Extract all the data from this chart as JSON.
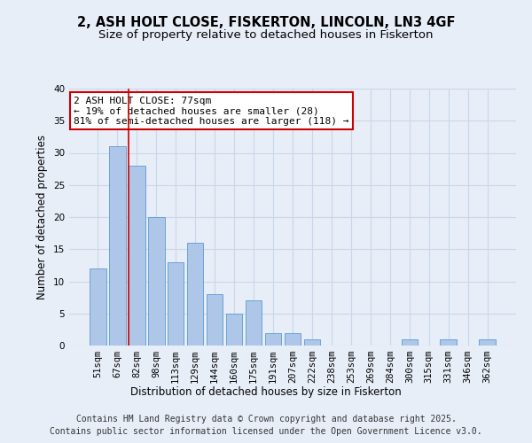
{
  "title1": "2, ASH HOLT CLOSE, FISKERTON, LINCOLN, LN3 4GF",
  "title2": "Size of property relative to detached houses in Fiskerton",
  "xlabel": "Distribution of detached houses by size in Fiskerton",
  "ylabel": "Number of detached properties",
  "categories": [
    "51sqm",
    "67sqm",
    "82sqm",
    "98sqm",
    "113sqm",
    "129sqm",
    "144sqm",
    "160sqm",
    "175sqm",
    "191sqm",
    "207sqm",
    "222sqm",
    "238sqm",
    "253sqm",
    "269sqm",
    "284sqm",
    "300sqm",
    "315sqm",
    "331sqm",
    "346sqm",
    "362sqm"
  ],
  "values": [
    12,
    31,
    28,
    20,
    13,
    16,
    8,
    5,
    7,
    2,
    2,
    1,
    0,
    0,
    0,
    0,
    1,
    0,
    1,
    0,
    1
  ],
  "bar_color": "#aec6e8",
  "bar_edge_color": "#5b9bd5",
  "grid_color": "#c8d8e8",
  "background_color": "#e8eef8",
  "red_line_x": 1.58,
  "annotation_text": "2 ASH HOLT CLOSE: 77sqm\n← 19% of detached houses are smaller (28)\n81% of semi-detached houses are larger (118) →",
  "annotation_box_color": "#ffffff",
  "annotation_box_edge": "#cc0000",
  "ylim": [
    0,
    40
  ],
  "yticks": [
    0,
    5,
    10,
    15,
    20,
    25,
    30,
    35,
    40
  ],
  "footer1": "Contains HM Land Registry data © Crown copyright and database right 2025.",
  "footer2": "Contains public sector information licensed under the Open Government Licence v3.0.",
  "title_fontsize": 10.5,
  "subtitle_fontsize": 9.5,
  "axis_label_fontsize": 8.5,
  "tick_fontsize": 7.5,
  "annotation_fontsize": 8,
  "footer_fontsize": 7
}
